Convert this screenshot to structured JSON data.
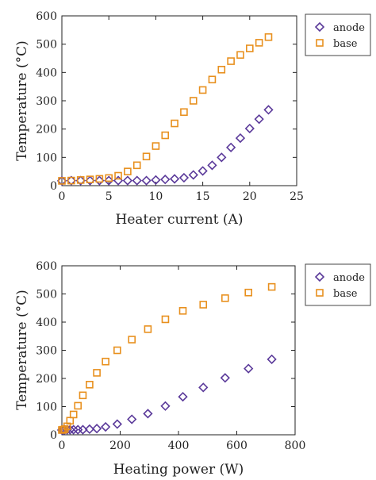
{
  "chart_data": [
    {
      "type": "scatter",
      "xlabel": "Heater current (A)",
      "ylabel": "Temperature (°C)",
      "xlim": [
        0,
        25
      ],
      "ylim": [
        0,
        600
      ],
      "xticks": [
        0,
        5,
        10,
        15,
        20,
        25
      ],
      "yticks": [
        0,
        100,
        200,
        300,
        400,
        500,
        600
      ],
      "legend_position": "outside-top-right",
      "series": [
        {
          "name": "anode",
          "marker": "diamond",
          "color": "#5b3a9a",
          "x": [
            0,
            1,
            2,
            3,
            4,
            5,
            6,
            7,
            8,
            9,
            10,
            11,
            12,
            13,
            14,
            15,
            16,
            17,
            18,
            19,
            20,
            21,
            22
          ],
          "y": [
            17,
            18,
            18,
            18,
            18,
            18,
            18,
            18,
            18,
            18,
            20,
            22,
            24,
            28,
            38,
            52,
            72,
            100,
            135,
            168,
            202,
            235,
            268
          ]
        },
        {
          "name": "base",
          "marker": "square",
          "color": "#e8901e",
          "x": [
            0,
            1,
            2,
            3,
            4,
            5,
            6,
            7,
            8,
            9,
            10,
            11,
            12,
            13,
            14,
            15,
            16,
            17,
            18,
            19,
            20,
            21,
            22
          ],
          "y": [
            17,
            18,
            20,
            22,
            24,
            27,
            35,
            50,
            72,
            103,
            140,
            178,
            220,
            260,
            300,
            338,
            375,
            410,
            440,
            462,
            485,
            505,
            525
          ]
        }
      ]
    },
    {
      "type": "scatter",
      "xlabel": "Heating power (W)",
      "ylabel": "Temperature (°C)",
      "xlim": [
        0,
        800
      ],
      "ylim": [
        0,
        600
      ],
      "xticks": [
        0,
        200,
        400,
        600,
        800
      ],
      "yticks": [
        0,
        100,
        200,
        300,
        400,
        500,
        600
      ],
      "legend_position": "outside-top-right",
      "series": [
        {
          "name": "anode",
          "marker": "diamond",
          "color": "#5b3a9a",
          "x": [
            0,
            5,
            10,
            18,
            28,
            40,
            55,
            72,
            95,
            120,
            150,
            190,
            240,
            295,
            355,
            415,
            485,
            560,
            640,
            720
          ],
          "y": [
            17,
            17,
            18,
            18,
            18,
            18,
            18,
            18,
            20,
            22,
            28,
            38,
            55,
            75,
            102,
            135,
            168,
            202,
            235,
            268
          ]
        },
        {
          "name": "base",
          "marker": "square",
          "color": "#e8901e",
          "x": [
            0,
            5,
            10,
            18,
            28,
            40,
            55,
            72,
            95,
            120,
            150,
            190,
            240,
            295,
            355,
            415,
            485,
            560,
            640,
            720
          ],
          "y": [
            17,
            18,
            20,
            30,
            50,
            72,
            103,
            140,
            178,
            220,
            260,
            300,
            338,
            375,
            410,
            440,
            462,
            485,
            505,
            525
          ]
        }
      ]
    }
  ]
}
